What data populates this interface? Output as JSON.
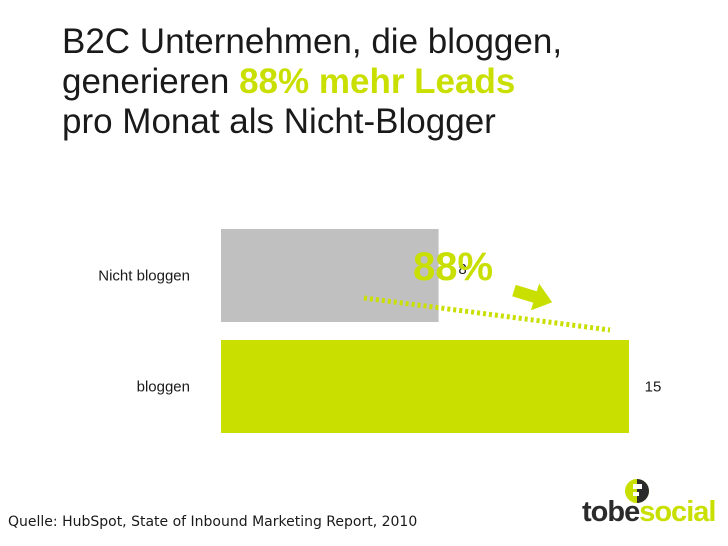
{
  "title": {
    "line1": "B2C Unternehmen, die bloggen,",
    "line2_prefix": "generieren ",
    "line2_highlight": "88% mehr Leads",
    "line3": "pro Monat als Nicht-Blogger"
  },
  "chart_data": {
    "type": "bar",
    "orientation": "horizontal",
    "categories": [
      "Nicht bloggen",
      "bloggen"
    ],
    "values": [
      8,
      15
    ],
    "colors": [
      "#c0c0c0",
      "#c9df00"
    ],
    "xlim": [
      0,
      15
    ],
    "grid": false,
    "annotation": {
      "text": "88%",
      "color": "#c9df00"
    }
  },
  "footer": {
    "source": "Quelle: HubSpot, State of Inbound Marketing Report,  2010"
  },
  "logo": {
    "part1": "tobe",
    "part2": "social",
    "dark_color": "#2b2b2b",
    "accent_color": "#c9df00"
  }
}
